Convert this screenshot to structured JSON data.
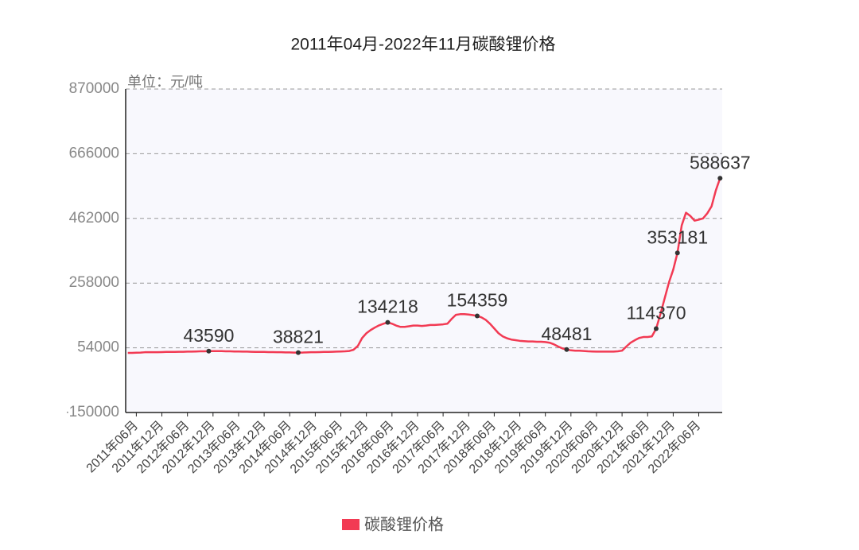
{
  "chart_data": {
    "type": "line",
    "title": "2011年04月-2022年11月碳酸锂价格",
    "unit_label": "单位：元/吨",
    "categories": [
      null,
      null,
      "2011年06月",
      null,
      null,
      null,
      null,
      null,
      "2011年12月",
      null,
      null,
      null,
      null,
      null,
      "2012年06月",
      null,
      null,
      null,
      null,
      null,
      "2012年12月",
      null,
      null,
      null,
      null,
      null,
      "2013年06月",
      null,
      null,
      null,
      null,
      null,
      "2013年12月",
      null,
      null,
      null,
      null,
      null,
      "2014年06月",
      null,
      null,
      null,
      null,
      null,
      "2014年12月",
      null,
      null,
      null,
      null,
      null,
      "2015年06月",
      null,
      null,
      null,
      null,
      null,
      "2015年12月",
      null,
      null,
      null,
      null,
      null,
      "2016年06月",
      null,
      null,
      null,
      null,
      null,
      "2016年12月",
      null,
      null,
      null,
      null,
      null,
      "2017年06月",
      null,
      null,
      null,
      null,
      null,
      "2017年12月",
      null,
      null,
      null,
      null,
      null,
      "2018年06月",
      null,
      null,
      null,
      null,
      null,
      "2018年12月",
      null,
      null,
      null,
      null,
      null,
      "2019年06月",
      null,
      null,
      null,
      null,
      null,
      "2019年12月",
      null,
      null,
      null,
      null,
      null,
      "2020年06月",
      null,
      null,
      null,
      null,
      null,
      "2020年12月",
      null,
      null,
      null,
      null,
      null,
      "2021年06月",
      null,
      null,
      null,
      null,
      null,
      "2021年12月",
      null,
      null,
      null,
      null,
      null,
      "2022年06月",
      null,
      null,
      null,
      null,
      null
    ],
    "series": [
      {
        "name": "碳酸锂价格",
        "color": "#f23a53",
        "values": [
          38000,
          38000,
          38500,
          39000,
          40000,
          40000,
          40000,
          40000,
          40500,
          41000,
          41000,
          41000,
          41500,
          41500,
          42000,
          42000,
          42500,
          43000,
          43000,
          43590,
          43500,
          43500,
          43500,
          43000,
          43000,
          42500,
          42500,
          42000,
          42000,
          41500,
          41000,
          41000,
          41000,
          40500,
          40500,
          40000,
          40000,
          39500,
          39500,
          39000,
          38821,
          39000,
          39500,
          40000,
          40000,
          40500,
          41000,
          41000,
          41500,
          42000,
          42500,
          43000,
          44000,
          48000,
          60000,
          85000,
          100000,
          110000,
          118000,
          125000,
          130000,
          134218,
          130000,
          124000,
          120000,
          120000,
          122000,
          124000,
          124000,
          123000,
          124000,
          126000,
          126000,
          127000,
          128000,
          130000,
          145000,
          158000,
          160000,
          160000,
          159000,
          157000,
          154359,
          150000,
          142000,
          130000,
          115000,
          100000,
          90000,
          84000,
          80000,
          78000,
          76000,
          75000,
          74000,
          74000,
          73000,
          73000,
          72000,
          70000,
          65000,
          58000,
          52000,
          48481,
          46000,
          45000,
          45000,
          44000,
          43000,
          42500,
          42000,
          42000,
          42000,
          42000,
          42000,
          43000,
          45000,
          58000,
          70000,
          78000,
          85000,
          88000,
          88000,
          90000,
          114370,
          160000,
          210000,
          260000,
          300000,
          353181,
          440000,
          480000,
          470000,
          455000,
          458000,
          462000,
          478000,
          500000,
          550000,
          588637
        ],
        "value_labels": [
          null,
          null,
          null,
          null,
          null,
          null,
          null,
          null,
          null,
          null,
          null,
          null,
          null,
          null,
          null,
          null,
          null,
          null,
          null,
          "43590",
          null,
          null,
          null,
          null,
          null,
          null,
          null,
          null,
          null,
          null,
          null,
          null,
          null,
          null,
          null,
          null,
          null,
          null,
          null,
          null,
          "38821",
          null,
          null,
          null,
          null,
          null,
          null,
          null,
          null,
          null,
          null,
          null,
          null,
          null,
          null,
          null,
          null,
          null,
          null,
          null,
          null,
          "134218",
          null,
          null,
          null,
          null,
          null,
          null,
          null,
          null,
          null,
          null,
          null,
          null,
          null,
          null,
          null,
          null,
          null,
          null,
          null,
          null,
          "154359",
          null,
          null,
          null,
          null,
          null,
          null,
          null,
          null,
          null,
          null,
          null,
          null,
          null,
          null,
          null,
          null,
          null,
          null,
          null,
          null,
          "48481",
          null,
          null,
          null,
          null,
          null,
          null,
          null,
          null,
          null,
          null,
          null,
          null,
          null,
          null,
          null,
          null,
          null,
          null,
          null,
          null,
          "114370",
          null,
          null,
          null,
          null,
          "353181",
          null,
          null,
          null,
          null,
          null,
          null,
          null,
          null,
          null,
          "588637"
        ]
      }
    ],
    "ylim": [
      -150000,
      870000
    ],
    "yticks": [
      -150000,
      54000,
      258000,
      462000,
      666000,
      870000
    ],
    "grid": true,
    "legend": "bottom"
  }
}
